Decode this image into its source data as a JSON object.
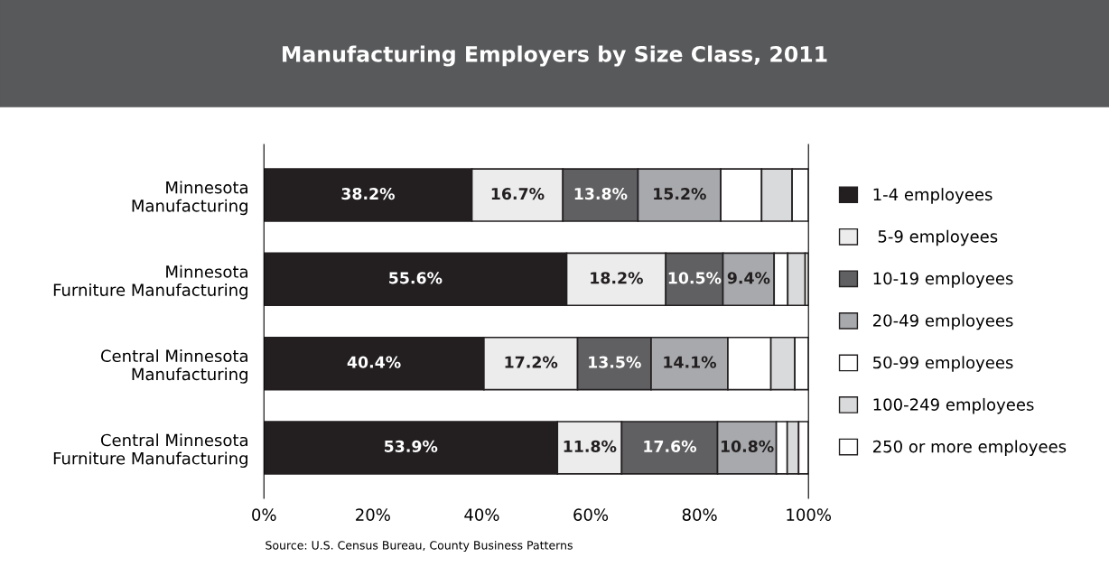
{
  "chart_data": {
    "type": "bar",
    "orientation": "horizontal",
    "stacked": true,
    "title": "Manufacturing Employers by Size Class, 2011",
    "categories": [
      "Minnesota\nManufacturing",
      "Minnesota\nFurniture Manufacturing",
      "Central Minnesota\nManufacturing",
      "Central Minnesota\nFurniture Manufacturing"
    ],
    "series": [
      {
        "name": "1-4 employees",
        "color": "#231f20",
        "values": [
          38.2,
          55.6,
          40.4,
          53.9
        ],
        "value_labels": [
          "38.2%",
          "55.6%",
          "40.4%",
          "53.9%"
        ]
      },
      {
        "name": " 5-9 employees",
        "color": "#ececec",
        "values": [
          16.7,
          18.2,
          17.2,
          11.8
        ],
        "value_labels": [
          "16.7%",
          "18.2%",
          "17.2%",
          "11.8%"
        ]
      },
      {
        "name": "10-19 employees",
        "color": "#606062",
        "values": [
          13.8,
          10.5,
          13.5,
          17.6
        ],
        "value_labels": [
          "13.8%",
          "10.5%",
          "13.5%",
          "17.6%"
        ]
      },
      {
        "name": "20-49 employees",
        "color": "#a7a9ac",
        "values": [
          15.2,
          9.4,
          14.1,
          10.8
        ],
        "value_labels": [
          "15.2%",
          "9.4%",
          "14.1%",
          "10.8%"
        ]
      },
      {
        "name": "50-99 employees",
        "color": "#ffffff",
        "values": [
          7.5,
          2.5,
          7.9,
          2.0
        ]
      },
      {
        "name": "100-249 employees",
        "color": "#d9dadb",
        "values": [
          5.6,
          3.2,
          4.4,
          2.1
        ]
      },
      {
        "name": "250 or more employees",
        "color": "#ffffff",
        "values": [
          3.0,
          0.6,
          2.5,
          1.8
        ]
      }
    ],
    "xlim": [
      0,
      100
    ],
    "xticks": [
      {
        "value": 0,
        "label": "0%"
      },
      {
        "value": 20,
        "label": "20%"
      },
      {
        "value": 40,
        "label": "40%"
      },
      {
        "value": 60,
        "label": "60%"
      },
      {
        "value": 80,
        "label": "80%"
      },
      {
        "value": 100,
        "label": "100%"
      }
    ],
    "grid": false,
    "legend": "right",
    "annotations": [
      "Source: U.S. Census Bureau, County Business Patterns"
    ]
  }
}
